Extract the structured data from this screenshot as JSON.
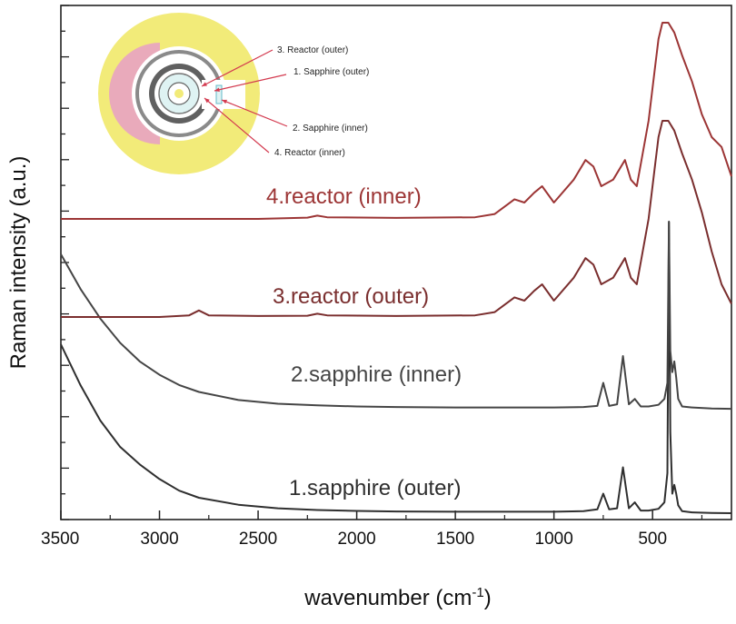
{
  "chart_data": {
    "type": "line",
    "xlabel": "wavenumber (cm",
    "xlabel_sup": "-1",
    "xlabel_end": ")",
    "ylabel": "Raman intensity (a.u.)",
    "xlim": [
      3500,
      100
    ],
    "x_reversed": true,
    "y_ticks_labeled": false,
    "x_ticks": [
      3500,
      3000,
      2500,
      2000,
      1500,
      1000,
      500
    ],
    "grid": false,
    "series": [
      {
        "name": "1.sapphire (outer)",
        "color": "#2f2f2f",
        "x": [
          3500,
          3400,
          3300,
          3200,
          3100,
          3000,
          2900,
          2800,
          2600,
          2400,
          2200,
          2000,
          1800,
          1500,
          1200,
          1000,
          850,
          780,
          750,
          720,
          680,
          650,
          620,
          590,
          560,
          520,
          470,
          440,
          425,
          417,
          410,
          400,
          390,
          380,
          370,
          350,
          300,
          200,
          100
        ],
        "y": [
          0.58,
          0.44,
          0.32,
          0.23,
          0.17,
          0.12,
          0.08,
          0.056,
          0.032,
          0.02,
          0.014,
          0.011,
          0.009,
          0.008,
          0.008,
          0.008,
          0.01,
          0.016,
          0.07,
          0.016,
          0.02,
          0.16,
          0.02,
          0.04,
          0.012,
          0.012,
          0.018,
          0.04,
          0.14,
          1.0,
          0.28,
          0.07,
          0.1,
          0.07,
          0.03,
          0.01,
          0.006,
          0.004,
          0.003
        ]
      },
      {
        "name": "2.sapphire (inner)",
        "color": "#454545",
        "x": [
          3500,
          3400,
          3300,
          3200,
          3100,
          3000,
          2900,
          2800,
          2600,
          2400,
          2200,
          2000,
          1800,
          1500,
          1200,
          1000,
          850,
          780,
          750,
          720,
          680,
          650,
          620,
          590,
          560,
          520,
          470,
          440,
          425,
          417,
          410,
          400,
          390,
          380,
          370,
          350,
          300,
          200,
          100
        ],
        "y": [
          0.58,
          0.45,
          0.34,
          0.25,
          0.18,
          0.13,
          0.092,
          0.066,
          0.036,
          0.022,
          0.016,
          0.012,
          0.01,
          0.008,
          0.008,
          0.008,
          0.01,
          0.014,
          0.1,
          0.014,
          0.02,
          0.2,
          0.02,
          0.04,
          0.012,
          0.012,
          0.018,
          0.04,
          0.1,
          0.7,
          0.22,
          0.14,
          0.18,
          0.12,
          0.04,
          0.012,
          0.008,
          0.004,
          0.003
        ]
      },
      {
        "name": "3.reactor (outer)",
        "color": "#7a2e2e",
        "x": [
          3500,
          3000,
          2850,
          2800,
          2750,
          2500,
          2250,
          2200,
          2150,
          1800,
          1400,
          1300,
          1200,
          1150,
          1100,
          1060,
          1000,
          900,
          840,
          800,
          760,
          700,
          640,
          610,
          580,
          520,
          490,
          470,
          450,
          420,
          390,
          350,
          300,
          250,
          200,
          150,
          100
        ],
        "y": [
          0.0,
          0.0,
          0.005,
          0.02,
          0.005,
          0.003,
          0.004,
          0.01,
          0.005,
          0.003,
          0.005,
          0.015,
          0.06,
          0.05,
          0.08,
          0.1,
          0.05,
          0.12,
          0.18,
          0.16,
          0.1,
          0.12,
          0.18,
          0.12,
          0.1,
          0.3,
          0.45,
          0.55,
          0.6,
          0.6,
          0.57,
          0.5,
          0.42,
          0.32,
          0.2,
          0.1,
          0.04
        ]
      },
      {
        "name": "4.reactor (inner)",
        "color": "#9c3535",
        "x": [
          3500,
          3000,
          2500,
          2250,
          2200,
          2150,
          1800,
          1400,
          1300,
          1200,
          1150,
          1100,
          1060,
          1000,
          900,
          840,
          800,
          760,
          700,
          640,
          610,
          580,
          520,
          490,
          470,
          450,
          420,
          390,
          350,
          300,
          250,
          200,
          150,
          100
        ],
        "y": [
          0.0,
          0.0,
          0.0,
          0.004,
          0.01,
          0.005,
          0.003,
          0.005,
          0.015,
          0.06,
          0.05,
          0.08,
          0.1,
          0.05,
          0.12,
          0.18,
          0.16,
          0.1,
          0.12,
          0.18,
          0.12,
          0.1,
          0.3,
          0.45,
          0.55,
          0.6,
          0.6,
          0.57,
          0.5,
          0.42,
          0.32,
          0.25,
          0.22,
          0.13
        ]
      }
    ],
    "inset": {
      "labels": [
        "3. Reactor (outer)",
        "1. Sapphire (outer)",
        "2. Sapphire (inner)",
        "4. Reactor (inner)"
      ],
      "colors": {
        "outer_ring": "#f2eb79",
        "reactor_block": "#e9aabb",
        "dark_ring": "#606060",
        "sapphire": "#dff3f3",
        "core": "#f2eb79",
        "arrow": "#d33a4f"
      }
    }
  }
}
